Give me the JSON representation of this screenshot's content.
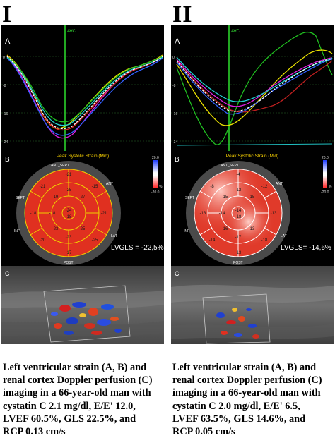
{
  "columns": [
    {
      "heading": "I",
      "panel_a": {
        "label": "A",
        "marker": "AVC",
        "ticks": [
          "0",
          "-8",
          "-16",
          "-24"
        ]
      },
      "panel_b": {
        "label": "B",
        "title": "Peak Systolic Strain (Mid)",
        "scale_top": "20.0",
        "scale_bottom": "-20.0",
        "scale_unit": "%",
        "wall_labels": {
          "ant_sept": "ANT_SEPT",
          "ant": "ANT",
          "sept": "SEPT",
          "lat": "LAT",
          "inf": "INF",
          "post": "POST"
        },
        "segment_values": [
          "-21",
          "-15",
          "-21",
          "-18",
          "-21",
          "-25",
          "-19",
          "-27",
          "-24",
          "-18",
          "-23",
          "-25",
          "-20",
          "-25",
          "-23",
          "-17",
          "-18"
        ],
        "lvgls": "LVGLS = -22,5%"
      },
      "panel_c": {
        "label": "C"
      },
      "caption": [
        "Left ventricular strain (A, B) and",
        "renal cortex Doppler perfusion (C)",
        "imaging in a 66-year-old man with",
        "cystatin C 2.1 mg/dl, E/E' 12.0,",
        "LVEF 60.5%, GLS 22.5%, and",
        "RCP 0.13 cm/s"
      ]
    },
    {
      "heading": "II",
      "panel_a": {
        "label": "A",
        "marker": "AVC",
        "ticks": [
          "0",
          "-8",
          "-16",
          "-24"
        ]
      },
      "panel_b": {
        "label": "B",
        "title": "Peak Systolic Strain (Mid)",
        "scale_top": "20.0",
        "scale_bottom": "-20.0",
        "scale_unit": "%",
        "wall_labels": {
          "ant_sept": "ANT_SEPT",
          "ant": "ANT",
          "sept": "SEPT",
          "lat": "LAT",
          "inf": "INF",
          "post": "POST"
        },
        "segment_values": [
          "-4",
          "-12",
          "-8",
          "-13",
          "-13",
          "-12",
          "-15",
          "-15",
          "-14",
          "-18",
          "-16",
          "-13",
          "-14",
          "-18",
          "-17",
          "-13",
          "-14"
        ],
        "lvgls": "LVGLS= -14,6%"
      },
      "panel_c": {
        "label": "C"
      },
      "caption": [
        "Left ventricular strain (A, B) and",
        "renal cortex Doppler perfusion (C)",
        "imaging in a 66-year-old man with",
        "cystatin C 2.0 mg/dl, E/E' 6.5,",
        "LVEF 63.5%, GLS 14.6%, and",
        "RCP 0.05 cm/s"
      ]
    }
  ]
}
